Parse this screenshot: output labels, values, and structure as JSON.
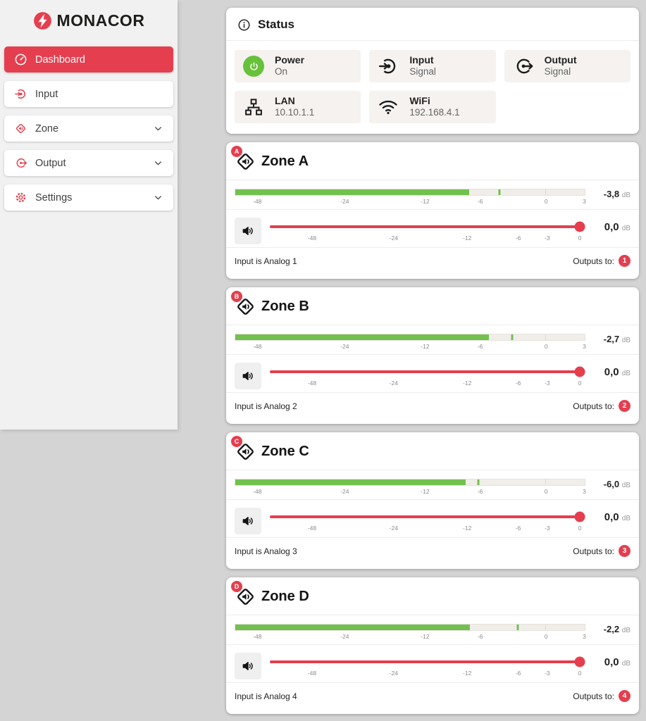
{
  "colors": {
    "accent_red": "#e53e4e",
    "meter_green": "#72c14e",
    "power_green": "#67c23a"
  },
  "sidebar": {
    "logo_text": "MONACOR",
    "items": [
      {
        "label": "Dashboard",
        "active": true,
        "chevron": false
      },
      {
        "label": "Input",
        "active": false,
        "chevron": false
      },
      {
        "label": "Zone",
        "active": false,
        "chevron": true
      },
      {
        "label": "Output",
        "active": false,
        "chevron": true
      },
      {
        "label": "Settings",
        "active": false,
        "chevron": true
      }
    ]
  },
  "status": {
    "title": "Status",
    "tiles": [
      {
        "label": "Power",
        "value": "On"
      },
      {
        "label": "Input",
        "value": "Signal"
      },
      {
        "label": "Output",
        "value": "Signal"
      },
      {
        "label": "LAN",
        "value": "10.10.1.1"
      },
      {
        "label": "WiFi",
        "value": "192.168.4.1"
      }
    ]
  },
  "scales": {
    "meter": [
      {
        "label": "-48",
        "pct": 6.5
      },
      {
        "label": "-24",
        "pct": 31.4
      },
      {
        "label": "-12",
        "pct": 54.3
      },
      {
        "label": "-6",
        "pct": 70
      },
      {
        "label": "0",
        "pct": 88.8
      },
      {
        "label": "3",
        "pct": 99.7
      }
    ],
    "volume": [
      {
        "label": "-48",
        "pct": 13.5
      },
      {
        "label": "-24",
        "pct": 39.6
      },
      {
        "label": "-12",
        "pct": 63.1
      },
      {
        "label": "-6",
        "pct": 79.4
      },
      {
        "label": "-3",
        "pct": 88.7
      },
      {
        "label": "0",
        "pct": 99.1
      }
    ]
  },
  "zones": [
    {
      "letter": "A",
      "title": "Zone A",
      "meter": {
        "value": "-3,8",
        "unit": "dB",
        "fill_pct": 67,
        "peak_pct": 75.7
      },
      "volume": {
        "value": "0,0",
        "unit": "dB",
        "handle_pct": 99.1
      },
      "footer": {
        "input": "Input is Analog 1",
        "outputs_label": "Outputs to:",
        "badge": "1"
      }
    },
    {
      "letter": "B",
      "title": "Zone B",
      "meter": {
        "value": "-2,7",
        "unit": "dB",
        "fill_pct": 72.5,
        "peak_pct": 79.3
      },
      "volume": {
        "value": "0,0",
        "unit": "dB",
        "handle_pct": 99.1
      },
      "footer": {
        "input": "Input is Analog 2",
        "outputs_label": "Outputs to:",
        "badge": "2"
      }
    },
    {
      "letter": "C",
      "title": "Zone C",
      "meter": {
        "value": "-6,0",
        "unit": "dB",
        "fill_pct": 66,
        "peak_pct": 69.6
      },
      "volume": {
        "value": "0,0",
        "unit": "dB",
        "handle_pct": 99.1
      },
      "footer": {
        "input": "Input is Analog 3",
        "outputs_label": "Outputs to:",
        "badge": "3"
      }
    },
    {
      "letter": "D",
      "title": "Zone D",
      "meter": {
        "value": "-2,2",
        "unit": "dB",
        "fill_pct": 67.2,
        "peak_pct": 80.9
      },
      "volume": {
        "value": "0,0",
        "unit": "dB",
        "handle_pct": 99.1
      },
      "footer": {
        "input": "Input is Analog 4",
        "outputs_label": "Outputs to:",
        "badge": "4"
      }
    }
  ]
}
